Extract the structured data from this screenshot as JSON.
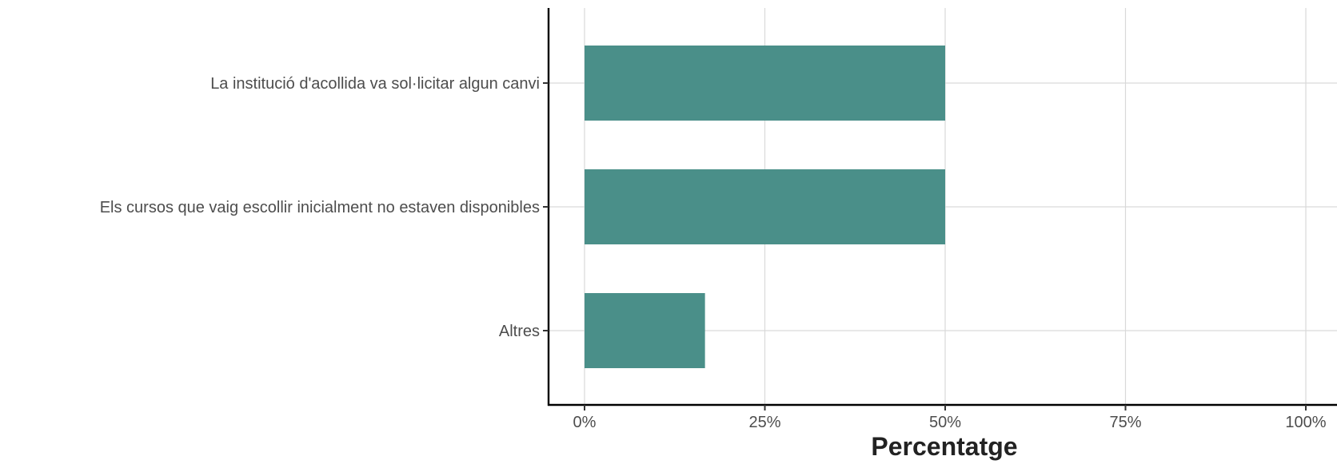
{
  "chart_data": {
    "type": "bar",
    "orientation": "horizontal",
    "categories": [
      "La institució d'acollida va sol·licitar algun canvi",
      "Els cursos que vaig escollir inicialment no estaven disponibles",
      "Altres"
    ],
    "values": [
      50,
      50,
      16.7
    ],
    "xlabel": "Percentatge",
    "ylabel": "",
    "xlim": [
      0,
      100
    ],
    "x_ticks": [
      0,
      25,
      50,
      75,
      100
    ],
    "x_tick_labels": [
      "0%",
      "25%",
      "50%",
      "75%",
      "100%"
    ],
    "grid": true,
    "legend": "none",
    "bar_color": "#4a8f89"
  }
}
